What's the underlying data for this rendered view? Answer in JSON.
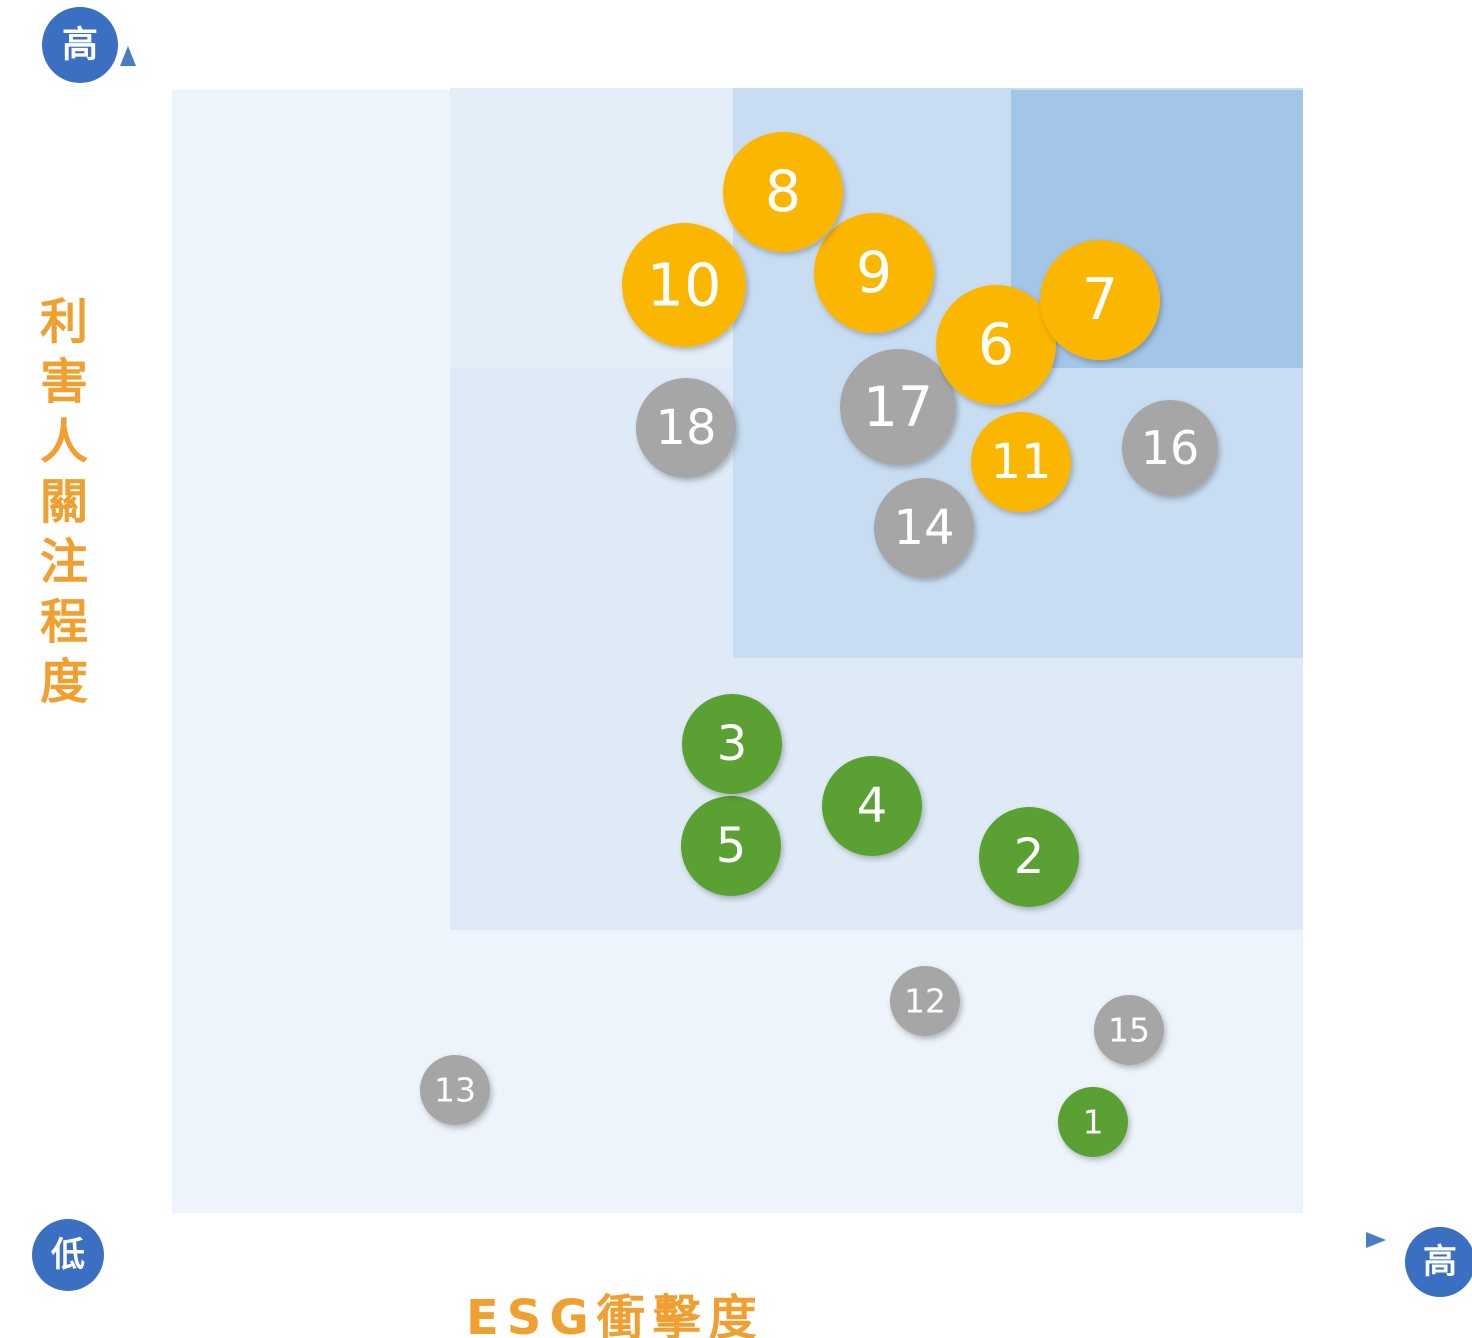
{
  "axes": {
    "y_high": "高",
    "origin_low": "低",
    "x_high": "高",
    "y_title": "利害人關注程度",
    "x_title": "ESG衝擊度"
  },
  "nodes": [
    {
      "label": "1",
      "color": "#5aa032"
    },
    {
      "label": "2",
      "color": "#5aa032"
    },
    {
      "label": "3",
      "color": "#5aa032"
    },
    {
      "label": "4",
      "color": "#5aa032"
    },
    {
      "label": "5",
      "color": "#5aa032"
    },
    {
      "label": "6",
      "color": "#fbb600"
    },
    {
      "label": "7",
      "color": "#fbb600"
    },
    {
      "label": "8",
      "color": "#fbb600"
    },
    {
      "label": "9",
      "color": "#fbb600"
    },
    {
      "label": "10",
      "color": "#fbb600"
    },
    {
      "label": "11",
      "color": "#fbb600"
    },
    {
      "label": "12",
      "color": "#a6a6a6"
    },
    {
      "label": "13",
      "color": "#a6a6a6"
    },
    {
      "label": "14",
      "color": "#a6a6a6"
    },
    {
      "label": "15",
      "color": "#a6a6a6"
    },
    {
      "label": "16",
      "color": "#a6a6a6"
    },
    {
      "label": "17",
      "color": "#a6a6a6"
    },
    {
      "label": "18",
      "color": "#a6a6a6"
    }
  ]
}
